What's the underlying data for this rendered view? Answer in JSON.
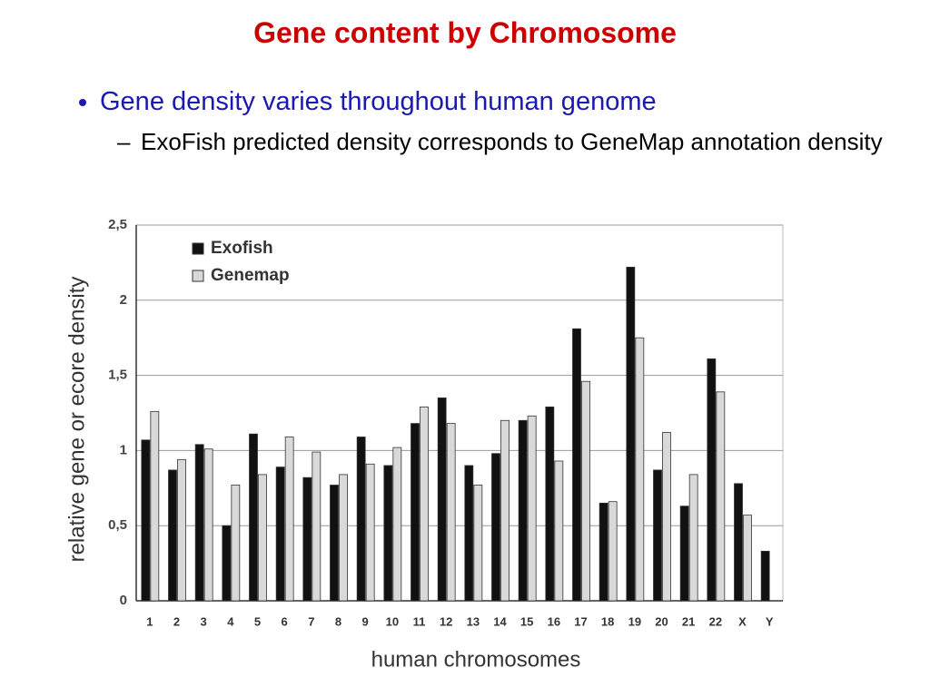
{
  "title": "Gene content by Chromosome",
  "bullets": [
    {
      "text": "Gene density varies throughout human genome",
      "sub": [
        "ExoFish predicted density corresponds to GeneMap annotation density"
      ]
    }
  ],
  "chart_data": {
    "type": "bar",
    "xlabel": "human chromosomes",
    "ylabel": "relative gene or ecore density",
    "categories": [
      "1",
      "2",
      "3",
      "4",
      "5",
      "6",
      "7",
      "8",
      "9",
      "10",
      "11",
      "12",
      "13",
      "14",
      "15",
      "16",
      "17",
      "18",
      "19",
      "20",
      "21",
      "22",
      "X",
      "Y"
    ],
    "series": [
      {
        "name": "Exofish",
        "color": "#111111",
        "values": [
          1.07,
          0.87,
          1.04,
          0.5,
          1.11,
          0.89,
          0.82,
          0.77,
          1.09,
          0.9,
          1.18,
          1.35,
          0.9,
          0.98,
          1.2,
          1.29,
          1.81,
          0.65,
          2.22,
          0.87,
          0.63,
          1.61,
          0.78,
          0.33
        ]
      },
      {
        "name": "Genemap",
        "color": "#d9d9d9",
        "values": [
          1.26,
          0.94,
          1.01,
          0.77,
          0.84,
          1.09,
          0.99,
          0.84,
          0.91,
          1.02,
          1.29,
          1.18,
          0.77,
          1.2,
          1.23,
          0.93,
          1.46,
          0.66,
          1.75,
          1.12,
          0.84,
          1.39,
          0.57,
          null
        ]
      }
    ],
    "ylim": [
      0,
      2.5
    ],
    "yticks": [
      0,
      {
        "value": 0.5,
        "label": "0,5"
      },
      1,
      {
        "value": 1.5,
        "label": "1,5"
      },
      2,
      {
        "value": 2.5,
        "label": "2,5"
      }
    ],
    "grid": true,
    "legend": "upper left"
  }
}
